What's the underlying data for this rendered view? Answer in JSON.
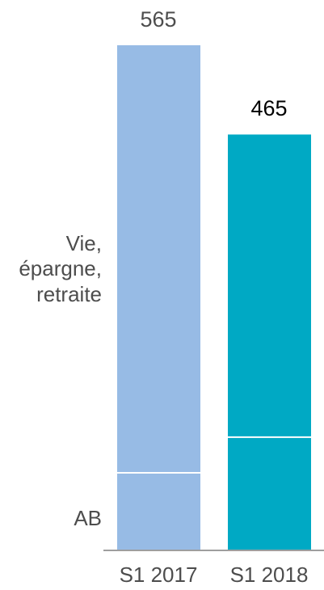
{
  "chart_data": {
    "type": "bar",
    "stacked": true,
    "categories": [
      "S1 2017",
      "S1 2018"
    ],
    "series": [
      {
        "name": "AB",
        "values": [
          86,
          126
        ]
      },
      {
        "name": "Vie, épargne, retraite",
        "values": [
          479,
          339
        ]
      }
    ],
    "totals": [
      "565",
      "465"
    ],
    "segment_labels": [
      "Vie,",
      "épargne,",
      "retraite",
      "AB"
    ],
    "colors": {
      "bar_2017": "#97BBE5",
      "bar_2018": "#00A9C4",
      "separator": "#ffffff",
      "axis": "#7f7f7f",
      "label_text": "#4d4d4d",
      "highlight_total": "#000000"
    },
    "ylim": [
      0,
      565
    ],
    "grid": false,
    "legend": "none"
  }
}
